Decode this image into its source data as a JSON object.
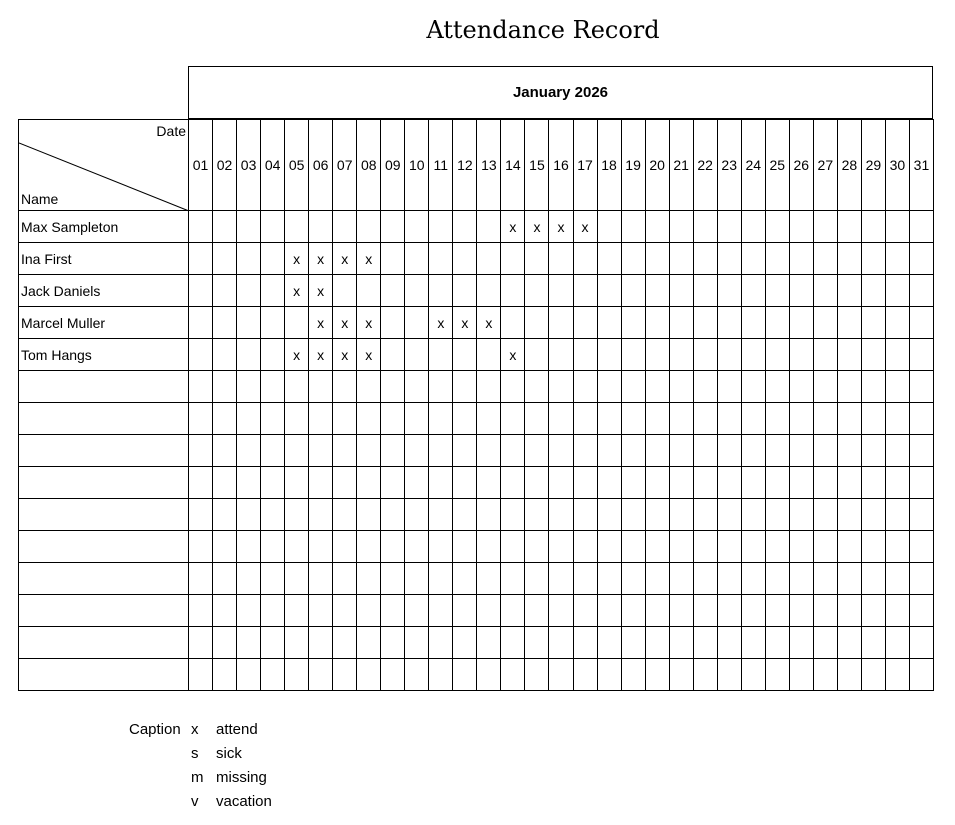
{
  "title": "Attendance Record",
  "month": "January 2026",
  "corner": {
    "date_label": "Date",
    "name_label": "Name"
  },
  "days": [
    "01",
    "02",
    "03",
    "04",
    "05",
    "06",
    "07",
    "08",
    "09",
    "10",
    "11",
    "12",
    "13",
    "14",
    "15",
    "16",
    "17",
    "18",
    "19",
    "20",
    "21",
    "22",
    "23",
    "24",
    "25",
    "26",
    "27",
    "28",
    "29",
    "30",
    "31"
  ],
  "rows": [
    {
      "name": "Max Sampleton",
      "marks": {
        "14": "x",
        "15": "x",
        "16": "x",
        "17": "x"
      }
    },
    {
      "name": "Ina First",
      "marks": {
        "05": "x",
        "06": "x",
        "07": "x",
        "08": "x"
      }
    },
    {
      "name": "Jack Daniels",
      "marks": {
        "05": "x",
        "06": "x"
      }
    },
    {
      "name": "Marcel Muller",
      "marks": {
        "06": "x",
        "07": "x",
        "08": "x",
        "11": "x",
        "12": "x",
        "13": "x"
      }
    },
    {
      "name": "Tom Hangs",
      "marks": {
        "05": "x",
        "06": "x",
        "07": "x",
        "08": "x",
        "14": "x"
      }
    },
    {
      "name": "",
      "marks": {}
    },
    {
      "name": "",
      "marks": {}
    },
    {
      "name": "",
      "marks": {}
    },
    {
      "name": "",
      "marks": {}
    },
    {
      "name": "",
      "marks": {}
    },
    {
      "name": "",
      "marks": {}
    },
    {
      "name": "",
      "marks": {}
    },
    {
      "name": "",
      "marks": {}
    },
    {
      "name": "",
      "marks": {}
    },
    {
      "name": "",
      "marks": {}
    }
  ],
  "caption": {
    "label": "Caption",
    "items": [
      {
        "symbol": "x",
        "meaning": "attend"
      },
      {
        "symbol": "s",
        "meaning": "sick"
      },
      {
        "symbol": "m",
        "meaning": "missing"
      },
      {
        "symbol": "v",
        "meaning": "vacation"
      }
    ]
  }
}
